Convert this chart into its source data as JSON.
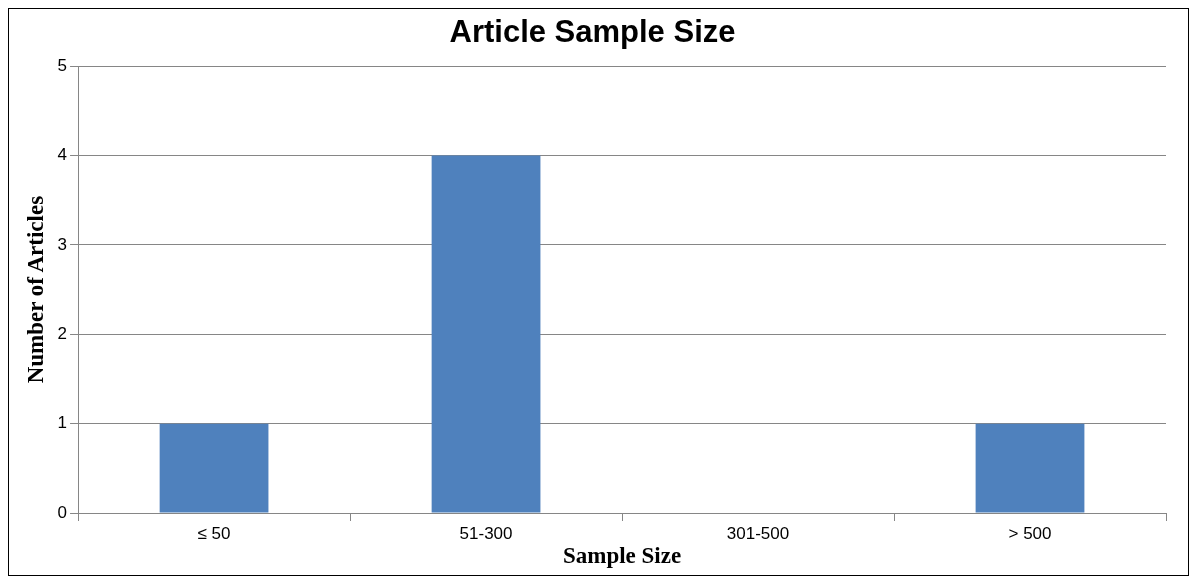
{
  "chart_data": {
    "type": "bar",
    "title": "Article Sample Size",
    "xlabel": "Sample Size",
    "ylabel": "Number of Articles",
    "categories": [
      "≤ 50",
      "51-300",
      "301-500",
      "> 500"
    ],
    "values": [
      1,
      4,
      0,
      1
    ],
    "color": "#4f81bd",
    "ylim": [
      0,
      5
    ],
    "yticks": [
      0,
      1,
      2,
      3,
      4,
      5
    ],
    "grid": "y",
    "legend": false
  }
}
